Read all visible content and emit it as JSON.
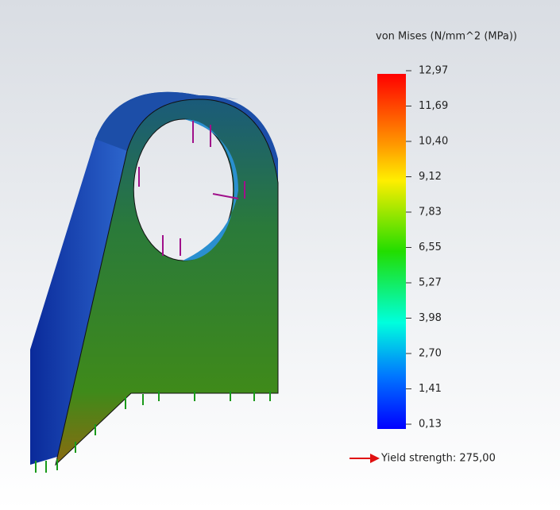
{
  "legend": {
    "title": "von Mises (N/mm^2 (MPa))",
    "labels": [
      "12,97",
      "11,69",
      "10,40",
      "9,12",
      "7,83",
      "6,55",
      "5,27",
      "3,98",
      "2,70",
      "1,41",
      "0,13"
    ]
  },
  "yield_label": "Yield strength: 275,00"
}
